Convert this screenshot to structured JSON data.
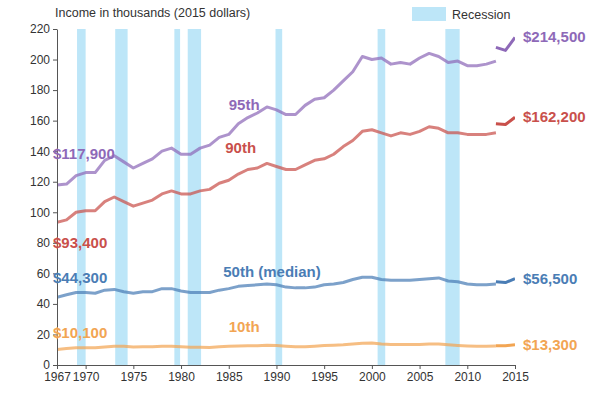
{
  "chart_data": {
    "type": "line",
    "y_label": "Income in thousands (2015 dollars)",
    "x": [
      1967,
      1968,
      1969,
      1970,
      1971,
      1972,
      1973,
      1974,
      1975,
      1976,
      1977,
      1978,
      1979,
      1980,
      1981,
      1982,
      1983,
      1984,
      1985,
      1986,
      1987,
      1988,
      1989,
      1990,
      1991,
      1992,
      1993,
      1994,
      1995,
      1996,
      1997,
      1998,
      1999,
      2000,
      2001,
      2002,
      2003,
      2004,
      2005,
      2006,
      2007,
      2008,
      2009,
      2010,
      2011,
      2012,
      2013,
      2013,
      2013,
      2014,
      2015
    ],
    "xlim": [
      1967,
      2015
    ],
    "xticks": [
      1967,
      1970,
      1975,
      1980,
      1985,
      1990,
      1995,
      2000,
      2005,
      2010,
      2015
    ],
    "ylim": [
      0,
      220
    ],
    "yticks": [
      0,
      20,
      40,
      60,
      80,
      100,
      120,
      140,
      160,
      180,
      200,
      220
    ],
    "grid": false,
    "recessions": {
      "name": "Recession",
      "color": "#bde6f8",
      "periods": [
        [
          1969.1,
          1970.0
        ],
        [
          1973.1,
          1974.4
        ],
        [
          1979.3,
          1979.9
        ],
        [
          1980.7,
          1982.1
        ],
        [
          1989.9,
          1990.6
        ],
        [
          2000.6,
          2001.4
        ],
        [
          2007.7,
          2009.2
        ]
      ]
    },
    "series": [
      {
        "name": "95th",
        "color": "#8e69b8",
        "values": [
          117.9,
          118.5,
          124,
          126,
          126,
          134,
          137,
          133,
          129,
          132,
          135,
          140,
          142,
          138,
          138,
          142,
          144,
          149,
          151,
          158,
          162,
          165,
          169,
          167,
          164,
          164,
          170,
          174,
          175,
          180,
          186,
          192,
          202,
          200,
          201,
          197,
          198,
          197,
          201,
          204,
          202,
          198,
          199,
          196,
          196,
          197,
          199,
          null,
          208,
          206,
          214.5
        ],
        "value_labels": [
          "$117,900",
          null,
          null,
          null,
          null,
          null,
          null,
          null,
          null,
          null,
          null,
          null,
          null,
          null,
          null,
          null,
          null,
          null,
          null,
          null,
          null,
          null,
          null,
          null,
          null,
          null,
          null,
          null,
          null,
          null,
          null,
          null,
          null,
          null,
          null,
          null,
          null,
          null,
          null,
          null,
          null,
          null,
          null,
          null,
          null,
          null,
          null,
          null,
          null,
          null,
          "$214,500"
        ]
      },
      {
        "name": "90th",
        "color": "#c9504b",
        "values": [
          93.4,
          95,
          100,
          101,
          101,
          107,
          110,
          107,
          104,
          106,
          108,
          112,
          114,
          112,
          112,
          114,
          115,
          119,
          121,
          125,
          128,
          129,
          132,
          130,
          128,
          128,
          131,
          134,
          135,
          138,
          143,
          147,
          153,
          154,
          152,
          150,
          152,
          151,
          153,
          156,
          155,
          152,
          152,
          151,
          151,
          151,
          152,
          null,
          158,
          157.5,
          162.2
        ],
        "value_labels": [
          "$93,400",
          null,
          null,
          null,
          null,
          null,
          null,
          null,
          null,
          null,
          null,
          null,
          null,
          null,
          null,
          null,
          null,
          null,
          null,
          null,
          null,
          null,
          null,
          null,
          null,
          null,
          null,
          null,
          null,
          null,
          null,
          null,
          null,
          null,
          null,
          null,
          null,
          null,
          null,
          null,
          null,
          null,
          null,
          null,
          null,
          null,
          null,
          null,
          null,
          null,
          "$162,200"
        ]
      },
      {
        "name": "50th (median)",
        "color": "#4a7db5",
        "values": [
          44.3,
          46,
          47.5,
          47.5,
          47,
          49,
          49.5,
          48,
          47,
          48,
          48,
          50,
          50,
          48.5,
          47.5,
          47.5,
          47.5,
          49,
          50,
          51.5,
          52,
          52.5,
          53,
          52.5,
          51,
          50.5,
          50.5,
          51,
          52.5,
          53,
          54,
          56,
          57.5,
          57.5,
          56,
          55.5,
          55.5,
          55.5,
          56,
          56.5,
          57,
          55,
          54.5,
          53,
          52.5,
          52.5,
          53,
          null,
          54.5,
          54,
          56.5
        ],
        "value_labels": [
          "$44,300",
          null,
          null,
          null,
          null,
          null,
          null,
          null,
          null,
          null,
          null,
          null,
          null,
          null,
          null,
          null,
          null,
          null,
          null,
          null,
          null,
          null,
          null,
          null,
          null,
          null,
          null,
          null,
          null,
          null,
          null,
          null,
          null,
          null,
          null,
          null,
          null,
          null,
          null,
          null,
          null,
          null,
          null,
          null,
          null,
          null,
          null,
          null,
          null,
          null,
          "$56,500"
        ]
      },
      {
        "name": "10th",
        "color": "#f2a553",
        "values": [
          10.1,
          10.8,
          11.3,
          11.3,
          11.3,
          11.8,
          12.2,
          12.2,
          11.8,
          11.9,
          11.9,
          12.3,
          12.3,
          12,
          11.7,
          11.6,
          11.5,
          11.9,
          12.2,
          12.4,
          12.6,
          12.6,
          13,
          12.7,
          12.3,
          12,
          11.9,
          12.3,
          12.8,
          13,
          13.3,
          13.8,
          14.3,
          14.4,
          13.8,
          13.5,
          13.4,
          13.4,
          13.5,
          13.7,
          13.7,
          13.2,
          12.8,
          12.5,
          12.3,
          12.3,
          12.4,
          null,
          12.6,
          12.6,
          13.3
        ],
        "value_labels": [
          "$10,100",
          null,
          null,
          null,
          null,
          null,
          null,
          null,
          null,
          null,
          null,
          null,
          null,
          null,
          null,
          null,
          null,
          null,
          null,
          null,
          null,
          null,
          null,
          null,
          null,
          null,
          null,
          null,
          null,
          null,
          null,
          null,
          null,
          null,
          null,
          null,
          null,
          null,
          null,
          null,
          null,
          null,
          null,
          null,
          null,
          null,
          null,
          null,
          null,
          null,
          "$13,300"
        ]
      }
    ]
  }
}
